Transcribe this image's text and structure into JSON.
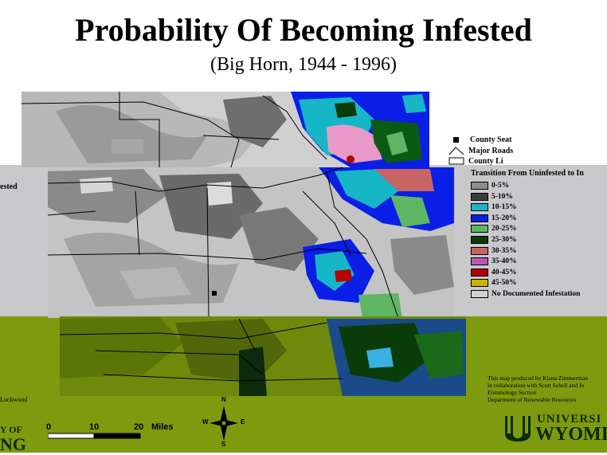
{
  "title": "Probability Of Becoming Infested",
  "subtitle": "(Big Horn, 1944 - 1996)",
  "map_symbols": [
    {
      "label": "County Seat",
      "icon": "square-icon"
    },
    {
      "label": "Major Roads",
      "icon": "road-line-icon"
    },
    {
      "label": "County Li",
      "icon": "county-line-icon"
    }
  ],
  "legend": {
    "title": "Transition From Uninfested to In",
    "items": [
      {
        "label": "0-5%",
        "color": "#8c8c8c"
      },
      {
        "label": "5-10%",
        "color": "#3c3c3c"
      },
      {
        "label": "10-15%",
        "color": "#17b6c6"
      },
      {
        "label": "15-20%",
        "color": "#0a1ee6"
      },
      {
        "label": "20-25%",
        "color": "#5fb564"
      },
      {
        "label": "25-30%",
        "color": "#0a3c0a"
      },
      {
        "label": "30-35%",
        "color": "#c86464"
      },
      {
        "label": "35-40%",
        "color": "#b45ab4"
      },
      {
        "label": "40-45%",
        "color": "#b40000"
      },
      {
        "label": "45-50%",
        "color": "#c8b400"
      },
      {
        "label": "No Documented Infestation",
        "color": "#d2d2d2"
      }
    ]
  },
  "left_fragments": {
    "ested": "ested",
    "lockwood": "Lockwood",
    "uni_top": "Y OF",
    "uni_bottom": "NG"
  },
  "scale_bar": {
    "ticks": [
      "0",
      "10",
      "20"
    ],
    "unit": "Miles"
  },
  "compass": {
    "n": "N",
    "s": "S",
    "e": "E",
    "w": "W"
  },
  "credit_lines": [
    "This map produced by Kiana Zimmerman",
    "in collaboration with Scott Schell and Je",
    "Entomology Section",
    "Department of Renewable Resources"
  ],
  "university": {
    "line1": "UNIVERSI",
    "line2": "WYOMI"
  }
}
